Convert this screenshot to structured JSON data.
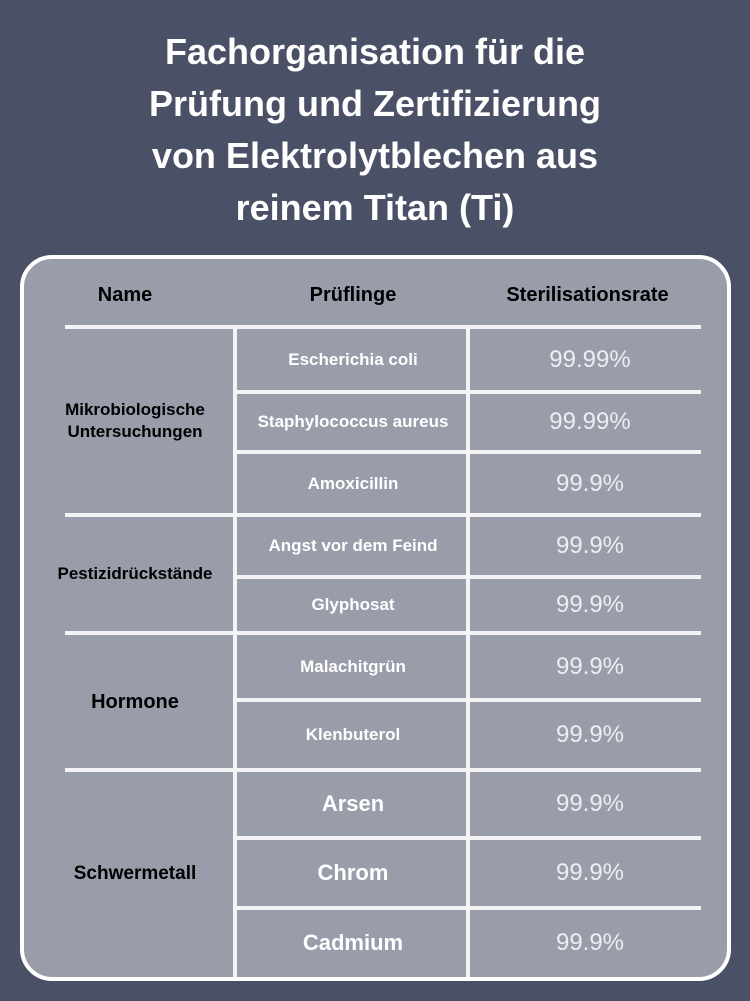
{
  "title": [
    "Fachorganisation für die",
    "Prüfung und Zertifizierung",
    "von Elektrolytblechen aus",
    "reinem Titan (Ti)"
  ],
  "headers": {
    "name": "Name",
    "samples": "Prüflinge",
    "rate": "Sterilisationsrate"
  },
  "groups": [
    {
      "name": "Mikrobiologische Untersuchungen",
      "rows": [
        {
          "sample": "Escherichia coli",
          "rate": "99.99%"
        },
        {
          "sample": "Staphylococcus aureus",
          "rate": "99.99%"
        },
        {
          "sample": "Amoxicillin",
          "rate": "99.9%"
        }
      ]
    },
    {
      "name": "Pestizidrückstände",
      "rows": [
        {
          "sample": "Angst vor dem Feind",
          "rate": "99.9%"
        },
        {
          "sample": "Glyphosat",
          "rate": "99.9%"
        }
      ]
    },
    {
      "name": "Hormone",
      "rows": [
        {
          "sample": "Malachitgrün",
          "rate": "99.9%"
        },
        {
          "sample": "Klenbuterol",
          "rate": "99.9%"
        }
      ]
    },
    {
      "name": "Schwermetall",
      "rows": [
        {
          "sample": "Arsen",
          "rate": "99.9%"
        },
        {
          "sample": "Chrom",
          "rate": "99.9%"
        },
        {
          "sample": "Cadmium",
          "rate": "99.9%"
        }
      ]
    }
  ],
  "colors": {
    "background": "#4a5166",
    "card": "#999daa",
    "lines": "#f4f4f6"
  }
}
